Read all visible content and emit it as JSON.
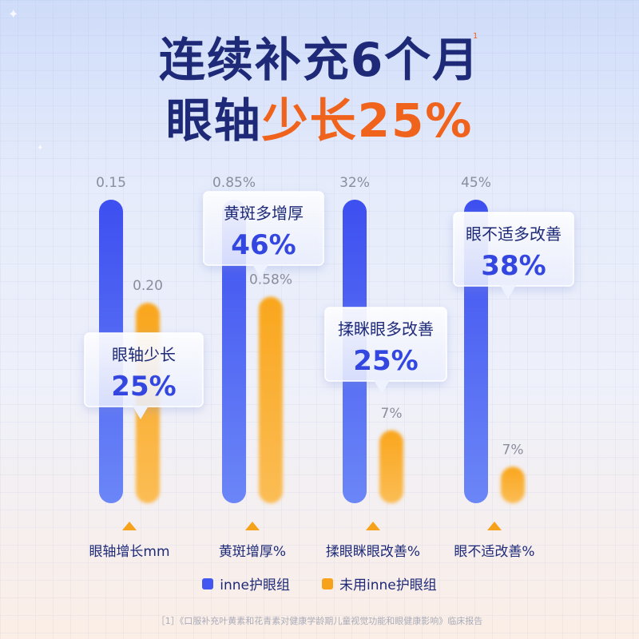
{
  "title": {
    "line1": "连续补充6个月",
    "line2_part1": "眼轴",
    "line2_part2": "少长25%",
    "footnote_mark": "1"
  },
  "chart_data": {
    "type": "bar",
    "categories": [
      "眼轴增长mm",
      "黄斑增厚%",
      "揉眼眯眼改善%",
      "眼不适改善%"
    ],
    "series": [
      {
        "name": "inne护眼组",
        "color": "#4257f2",
        "labels": [
          "0.15",
          "0.85%",
          "32%",
          "45%"
        ],
        "fill": [
          1.0,
          1.0,
          1.0,
          1.0
        ]
      },
      {
        "name": "未用inne护眼组",
        "color": "#f7a21b",
        "labels": [
          "0.20",
          "0.58%",
          "7%",
          "7%"
        ],
        "fill": [
          0.66,
          0.68,
          0.24,
          0.12
        ]
      }
    ],
    "callouts": [
      {
        "label": "眼轴少长",
        "value": "25%"
      },
      {
        "label": "黄斑多增厚",
        "value": "46%"
      },
      {
        "label": "揉眯眼多改善",
        "value": "25%"
      },
      {
        "label": "眼不适多改善",
        "value": "38%"
      }
    ],
    "legend": "bottom"
  },
  "legend": {
    "blue": "inne护眼组",
    "orange": "未用inne护眼组"
  },
  "citation": "［1］《口服补充叶黄素和花青素对健康学龄期儿童视觉功能和眼健康影响》临床报告",
  "colors": {
    "dark_blue": "#1e2a78",
    "orange_text": "#f0631c",
    "blue_bar": "#4257f2",
    "orange_bar": "#f7a21b"
  }
}
